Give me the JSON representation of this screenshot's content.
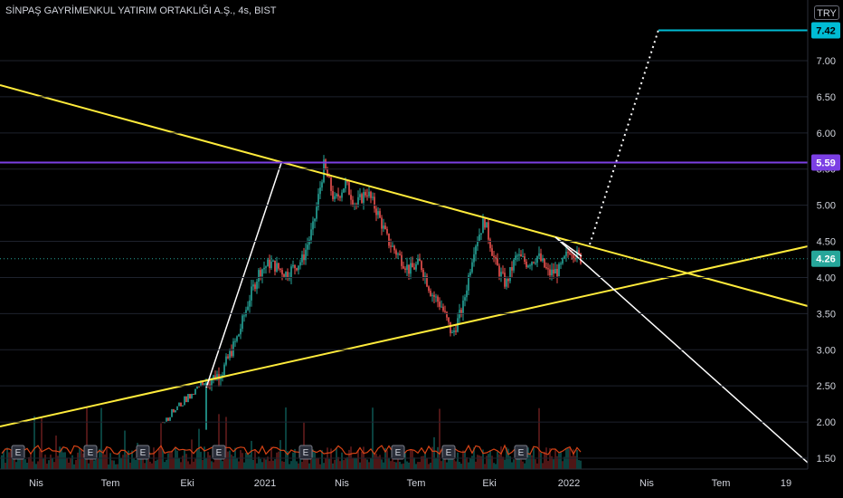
{
  "chart_data": {
    "type": "line",
    "title": "SİNPAŞ GAYRİMENKUL YATIRIM ORTAKLIĞI A.Ş., 4s, BIST",
    "currency": "TRY",
    "ylim": [
      1.3,
      7.9
    ],
    "y_ticks": [
      "1.50",
      "2.00",
      "2.50",
      "3.00",
      "3.50",
      "4.00",
      "4.50",
      "5.00",
      "5.50",
      "6.00",
      "6.50",
      "7.00"
    ],
    "y_tick_values": [
      1.5,
      2.0,
      2.5,
      3.0,
      3.5,
      4.0,
      4.5,
      5.0,
      5.5,
      6.0,
      6.5,
      7.0
    ],
    "x_ticks": [
      "Nis",
      "Tem",
      "Eki",
      "2021",
      "Nis",
      "Tem",
      "Eki",
      "2022",
      "Nis",
      "Tem",
      "19"
    ],
    "earnings_marker_label": "E",
    "price_path": [
      [
        0.0,
        1.9
      ],
      [
        0.05,
        1.95
      ],
      [
        0.1,
        1.9
      ],
      [
        0.15,
        2.0
      ],
      [
        0.2,
        2.25
      ],
      [
        0.23,
        2.05
      ],
      [
        0.26,
        2.3
      ],
      [
        0.3,
        2.55
      ],
      [
        0.33,
        2.7
      ],
      [
        0.36,
        3.2
      ],
      [
        0.38,
        3.7
      ],
      [
        0.4,
        4.1
      ],
      [
        0.42,
        4.2
      ],
      [
        0.45,
        4.05
      ],
      [
        0.48,
        4.25
      ],
      [
        0.5,
        4.7
      ],
      [
        0.52,
        5.55
      ],
      [
        0.54,
        5.05
      ],
      [
        0.56,
        5.3
      ],
      [
        0.58,
        5.0
      ],
      [
        0.6,
        5.2
      ],
      [
        0.62,
        4.9
      ],
      [
        0.64,
        4.5
      ],
      [
        0.66,
        4.3
      ],
      [
        0.68,
        4.1
      ],
      [
        0.7,
        4.2
      ],
      [
        0.72,
        3.8
      ],
      [
        0.74,
        3.6
      ],
      [
        0.76,
        3.2
      ],
      [
        0.78,
        3.6
      ],
      [
        0.8,
        4.4
      ],
      [
        0.82,
        4.8
      ],
      [
        0.84,
        4.2
      ],
      [
        0.86,
        3.9
      ],
      [
        0.88,
        4.3
      ],
      [
        0.9,
        4.2
      ],
      [
        0.92,
        4.3
      ],
      [
        0.94,
        4.05
      ],
      [
        0.96,
        4.1
      ],
      [
        0.98,
        4.4
      ],
      [
        1.0,
        4.26
      ]
    ],
    "levels": [
      {
        "name": "target",
        "value": 7.42,
        "label": "7.42",
        "color": "#00bcd4"
      },
      {
        "name": "resistance",
        "value": 5.59,
        "label": "5.59",
        "color": "#7b3fe4"
      },
      {
        "name": "last-price",
        "value": 4.26,
        "label": "4.26",
        "color": "#26a69a"
      }
    ],
    "colors": {
      "up": "#26a69a",
      "down": "#ef5350",
      "trend": "#ffeb3b",
      "projection": "#ffffff",
      "grid": "#1e222d",
      "axis_text": "#d1d4dc"
    }
  }
}
